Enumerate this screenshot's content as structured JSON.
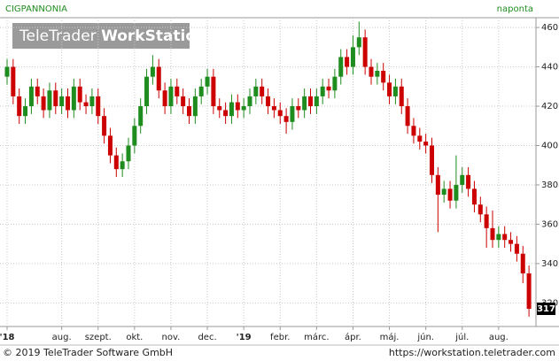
{
  "chart_data": {
    "type": "candlestick",
    "title": "CIGPANNONIA",
    "subtitle": "naponta",
    "categories": [
      "'18",
      null,
      null,
      null,
      null,
      null,
      null,
      null,
      null,
      "aug.",
      null,
      null,
      null,
      null,
      null,
      "szept.",
      null,
      null,
      null,
      null,
      null,
      "okt.",
      null,
      null,
      null,
      null,
      null,
      "nov.",
      null,
      null,
      null,
      null,
      null,
      "dec.",
      null,
      null,
      null,
      null,
      null,
      "'19",
      null,
      null,
      null,
      null,
      null,
      "febr.",
      null,
      null,
      null,
      null,
      null,
      "márc.",
      null,
      null,
      null,
      null,
      null,
      "ápr.",
      null,
      null,
      null,
      null,
      null,
      "máj.",
      null,
      null,
      null,
      null,
      null,
      "jún.",
      null,
      null,
      null,
      null,
      null,
      "júl.",
      null,
      null,
      null,
      null,
      null,
      "aug.",
      null,
      null,
      null,
      null,
      null
    ],
    "open": [
      435,
      440,
      425,
      415,
      420,
      430,
      425,
      418,
      428,
      420,
      425,
      418,
      430,
      422,
      420,
      425,
      415,
      405,
      395,
      388,
      392,
      400,
      410,
      420,
      435,
      440,
      428,
      420,
      430,
      425,
      420,
      415,
      425,
      430,
      435,
      420,
      418,
      415,
      422,
      418,
      420,
      425,
      430,
      425,
      420,
      418,
      415,
      412,
      420,
      418,
      425,
      420,
      425,
      430,
      428,
      435,
      445,
      440,
      450,
      455,
      440,
      435,
      438,
      432,
      425,
      430,
      420,
      410,
      405,
      402,
      400,
      385,
      375,
      378,
      372,
      380,
      385,
      378,
      370,
      365,
      358,
      352,
      355,
      352,
      350,
      345,
      335
    ],
    "high": [
      444,
      444,
      429,
      424,
      434,
      434,
      429,
      432,
      432,
      429,
      429,
      434,
      434,
      426,
      429,
      429,
      419,
      409,
      399,
      396,
      404,
      414,
      424,
      439,
      446,
      444,
      432,
      434,
      434,
      429,
      424,
      429,
      434,
      439,
      439,
      424,
      422,
      426,
      426,
      424,
      429,
      434,
      434,
      429,
      424,
      422,
      419,
      424,
      424,
      429,
      429,
      429,
      434,
      434,
      439,
      449,
      449,
      456,
      463,
      459,
      444,
      442,
      442,
      436,
      434,
      434,
      424,
      414,
      409,
      406,
      404,
      389,
      382,
      382,
      395,
      389,
      389,
      382,
      374,
      369,
      367,
      359,
      359,
      356,
      354,
      349,
      339
    ],
    "low": [
      431,
      421,
      411,
      411,
      416,
      421,
      414,
      414,
      416,
      416,
      414,
      414,
      418,
      416,
      416,
      411,
      401,
      391,
      384,
      384,
      388,
      396,
      406,
      416,
      431,
      424,
      416,
      416,
      421,
      416,
      411,
      411,
      421,
      426,
      416,
      414,
      411,
      411,
      414,
      414,
      416,
      421,
      421,
      416,
      414,
      411,
      406,
      408,
      414,
      414,
      416,
      416,
      421,
      424,
      424,
      431,
      436,
      436,
      446,
      436,
      431,
      431,
      428,
      421,
      421,
      416,
      406,
      401,
      398,
      396,
      381,
      356,
      371,
      368,
      368,
      376,
      374,
      366,
      361,
      348,
      348,
      348,
      348,
      346,
      341,
      330,
      313
    ],
    "close": [
      440,
      425,
      415,
      420,
      430,
      425,
      418,
      428,
      420,
      425,
      418,
      430,
      422,
      420,
      425,
      415,
      405,
      395,
      388,
      392,
      400,
      410,
      420,
      435,
      440,
      428,
      420,
      430,
      425,
      420,
      415,
      425,
      430,
      435,
      420,
      418,
      415,
      422,
      418,
      420,
      425,
      430,
      425,
      420,
      418,
      415,
      412,
      420,
      418,
      425,
      420,
      425,
      430,
      428,
      435,
      445,
      440,
      450,
      455,
      440,
      435,
      438,
      432,
      425,
      430,
      420,
      410,
      405,
      402,
      400,
      385,
      375,
      378,
      372,
      380,
      385,
      378,
      370,
      365,
      358,
      352,
      355,
      352,
      350,
      345,
      335,
      317
    ],
    "up_color": "#1e8c1e",
    "down_color": "#cc0000",
    "ylim": [
      308,
      465
    ],
    "yticks": [
      320,
      340,
      360,
      380,
      400,
      420,
      440,
      460
    ],
    "grid": true
  },
  "logo": [
    "TeleTrader",
    "WorkStation"
  ],
  "footer": {
    "left": "© 2019 TeleTrader Software GmbH",
    "right": "https://workstation.teletrader.com"
  }
}
